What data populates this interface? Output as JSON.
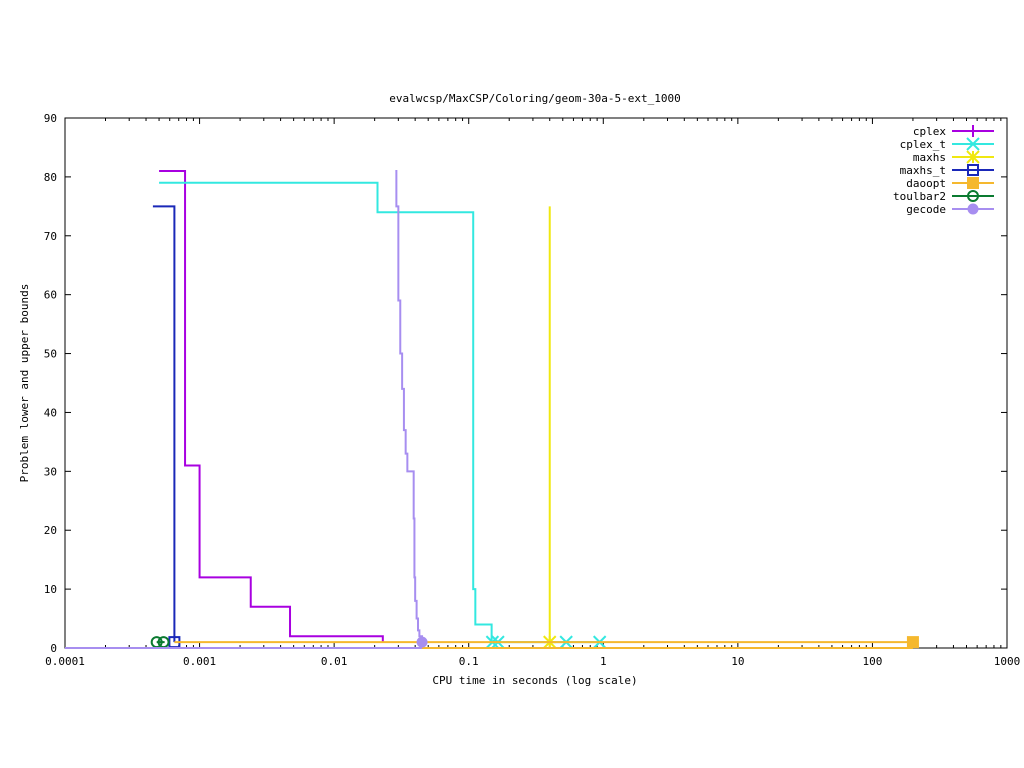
{
  "chart_data": {
    "type": "line",
    "title": "evalwcsp/MaxCSP/Coloring/geom-30a-5-ext_1000",
    "xlabel": "CPU time in seconds (log scale)",
    "ylabel": "Problem lower and upper bounds",
    "xscale": "log",
    "xlim": [
      0.0001,
      1000
    ],
    "ylim": [
      0,
      90
    ],
    "xticks": [
      0.0001,
      0.001,
      0.01,
      0.1,
      1,
      10,
      100,
      1000
    ],
    "xtick_labels": [
      "0.0001",
      "0.001",
      "0.01",
      "0.1",
      "1",
      "10",
      "100",
      "1000"
    ],
    "yticks": [
      0,
      10,
      20,
      30,
      40,
      50,
      60,
      70,
      80,
      90
    ],
    "ytick_labels": [
      "0",
      "10",
      "20",
      "30",
      "40",
      "50",
      "60",
      "70",
      "80",
      "90"
    ],
    "grid": false,
    "legend_position": "top-right",
    "series": [
      {
        "name": "cplex",
        "color": "#a800e0",
        "marker": "plus",
        "upper": [
          [
            0.0005,
            81
          ],
          [
            0.00075,
            81
          ],
          [
            0.00078,
            67
          ],
          [
            0.00078,
            31
          ],
          [
            0.001,
            31
          ],
          [
            0.001,
            12
          ],
          [
            0.0024,
            12
          ],
          [
            0.0024,
            7
          ],
          [
            0.0047,
            7
          ],
          [
            0.0047,
            2
          ],
          [
            0.023,
            2
          ],
          [
            0.023,
            1
          ]
        ],
        "lower": [
          [
            0.0001,
            0
          ],
          [
            0.023,
            0
          ]
        ],
        "markers": []
      },
      {
        "name": "cplex_t",
        "color": "#33e8e0",
        "marker": "cross",
        "upper": [
          [
            0.0005,
            79
          ],
          [
            0.021,
            79
          ],
          [
            0.021,
            74
          ],
          [
            0.108,
            74
          ],
          [
            0.108,
            10
          ],
          [
            0.112,
            10
          ],
          [
            0.112,
            4
          ],
          [
            0.148,
            4
          ],
          [
            0.148,
            1
          ],
          [
            0.94,
            1
          ]
        ],
        "lower": [
          [
            0.0001,
            0
          ],
          [
            0.94,
            0
          ]
        ],
        "markers": [
          [
            0.15,
            1
          ],
          [
            0.165,
            1
          ],
          [
            0.53,
            1
          ],
          [
            0.94,
            1
          ]
        ]
      },
      {
        "name": "maxhs",
        "color": "#f0e810",
        "marker": "star",
        "upper": [
          [
            0.4,
            75
          ],
          [
            0.4,
            1
          ]
        ],
        "lower": [
          [
            0.4,
            0
          ],
          [
            0.4,
            1
          ]
        ],
        "markers": [
          [
            0.4,
            1
          ]
        ]
      },
      {
        "name": "maxhs_t",
        "color": "#1a28b8",
        "marker": "box",
        "upper": [
          [
            0.00045,
            75
          ],
          [
            0.00065,
            75
          ],
          [
            0.00065,
            1
          ]
        ],
        "lower": [
          [
            0.0001,
            0
          ],
          [
            0.00065,
            0
          ]
        ],
        "markers": [
          [
            0.00065,
            1
          ]
        ]
      },
      {
        "name": "daoopt",
        "color": "#f5b82e",
        "marker": "box-filled",
        "upper": [
          [
            0.00065,
            1
          ],
          [
            200,
            1
          ]
        ],
        "lower": [
          [
            0.0001,
            0
          ],
          [
            200,
            0
          ]
        ],
        "markers": [
          [
            200,
            1
          ]
        ]
      },
      {
        "name": "toulbar2",
        "color": "#0a7a30",
        "marker": "circle",
        "upper": [
          [
            0.00048,
            1
          ],
          [
            0.00055,
            1
          ]
        ],
        "lower": [
          [
            0.0001,
            0
          ],
          [
            0.00055,
            0
          ]
        ],
        "markers": [
          [
            0.00048,
            1
          ],
          [
            0.00054,
            1
          ]
        ]
      },
      {
        "name": "gecode",
        "color": "#a78ef0",
        "marker": "circle-filled",
        "upper": [
          [
            0.0285,
            81
          ],
          [
            0.029,
            75
          ],
          [
            0.03,
            59
          ],
          [
            0.031,
            50
          ],
          [
            0.032,
            44
          ],
          [
            0.033,
            37
          ],
          [
            0.034,
            33
          ],
          [
            0.035,
            30
          ],
          [
            0.038,
            30
          ],
          [
            0.039,
            22
          ],
          [
            0.0395,
            12
          ],
          [
            0.04,
            8
          ],
          [
            0.041,
            5
          ],
          [
            0.042,
            3
          ],
          [
            0.043,
            2
          ],
          [
            0.045,
            1
          ]
        ],
        "lower": [
          [
            0.0001,
            0
          ],
          [
            0.045,
            0
          ]
        ],
        "markers": [
          [
            0.045,
            1
          ]
        ]
      }
    ]
  }
}
